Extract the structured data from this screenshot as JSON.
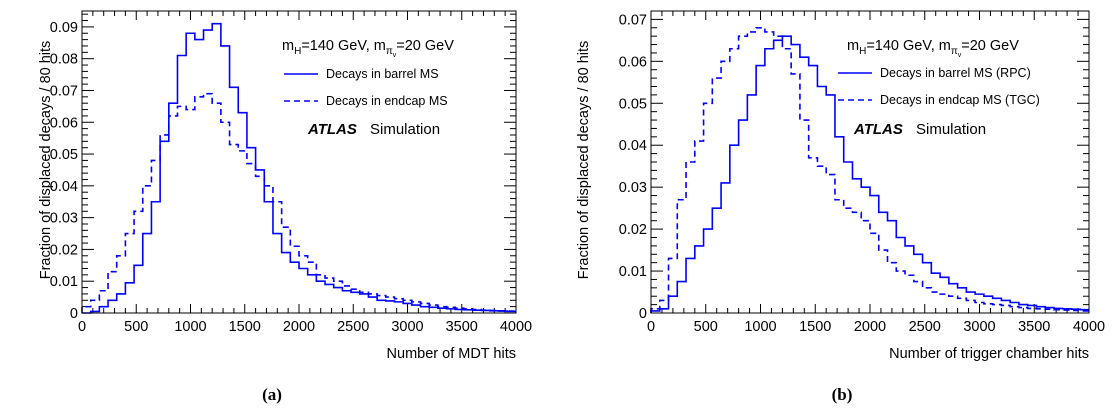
{
  "chart_data": [
    {
      "type": "step-histogram",
      "panel_label": "(a)",
      "xlabel": "Number of MDT hits",
      "ylabel": "Fraction of displaced decays / 80 hits",
      "xlim": [
        0,
        4000
      ],
      "ylim": [
        0,
        0.095
      ],
      "x_ticks": [
        0,
        500,
        1000,
        1500,
        2000,
        2500,
        3000,
        3500,
        4000
      ],
      "x_tick_labels": [
        "0",
        "500",
        "1000",
        "1500",
        "2000",
        "2500",
        "3000",
        "3500",
        "4000"
      ],
      "y_ticks": [
        0,
        0.01,
        0.02,
        0.03,
        0.04,
        0.05,
        0.06,
        0.07,
        0.08,
        0.09
      ],
      "y_tick_labels": [
        "0",
        "0.01",
        "0.02",
        "0.03",
        "0.04",
        "0.05",
        "0.06",
        "0.07",
        "0.08",
        "0.09"
      ],
      "bin_width": 80,
      "annotation": {
        "mH": "m",
        "mH_sub": "H",
        "mH_val": "=140 GeV, m",
        "pi_sub": "π",
        "pi_subsub": "v",
        "pi_val": "=20 GeV"
      },
      "atlas_label": "ATLAS",
      "sim_label": "Simulation",
      "legend_position": "top-right",
      "series": [
        {
          "name": "Decays in barrel MS",
          "style": "solid",
          "color": "#0000ff",
          "values": [
            0.0,
            0.0005,
            0.002,
            0.004,
            0.006,
            0.0095,
            0.015,
            0.025,
            0.035,
            0.054,
            0.066,
            0.081,
            0.088,
            0.086,
            0.089,
            0.091,
            0.084,
            0.071,
            0.063,
            0.052,
            0.045,
            0.035,
            0.025,
            0.019,
            0.016,
            0.014,
            0.012,
            0.01,
            0.009,
            0.008,
            0.007,
            0.0065,
            0.006,
            0.005,
            0.004,
            0.0038,
            0.0035,
            0.003,
            0.0025,
            0.002,
            0.0018,
            0.0015,
            0.0013,
            0.0011,
            0.001,
            0.0009,
            0.0008,
            0.0007,
            0.0006,
            0.0005
          ]
        },
        {
          "name": "Decays in endcap MS",
          "style": "dashed",
          "color": "#0000ff",
          "values": [
            0.002,
            0.004,
            0.007,
            0.013,
            0.018,
            0.025,
            0.032,
            0.04,
            0.048,
            0.056,
            0.062,
            0.065,
            0.064,
            0.068,
            0.069,
            0.066,
            0.06,
            0.053,
            0.051,
            0.047,
            0.043,
            0.04,
            0.035,
            0.027,
            0.021,
            0.018,
            0.016,
            0.012,
            0.011,
            0.01,
            0.0085,
            0.0075,
            0.0065,
            0.006,
            0.0055,
            0.005,
            0.0045,
            0.004,
            0.0035,
            0.003,
            0.0025,
            0.002,
            0.0018,
            0.0015,
            0.0013,
            0.0011,
            0.0009,
            0.0008,
            0.0007,
            0.0006
          ]
        }
      ]
    },
    {
      "type": "step-histogram",
      "panel_label": "(b)",
      "xlabel": "Number of trigger chamber hits",
      "ylabel": "Fraction of displaced decays / 80 hits",
      "xlim": [
        0,
        4000
      ],
      "ylim": [
        0,
        0.072
      ],
      "x_ticks": [
        0,
        500,
        1000,
        1500,
        2000,
        2500,
        3000,
        3500,
        4000
      ],
      "x_tick_labels": [
        "0",
        "500",
        "1000",
        "1500",
        "2000",
        "2500",
        "3000",
        "3500",
        "4000"
      ],
      "y_ticks": [
        0,
        0.01,
        0.02,
        0.03,
        0.04,
        0.05,
        0.06,
        0.07
      ],
      "y_tick_labels": [
        "0",
        "0.01",
        "0.02",
        "0.03",
        "0.04",
        "0.05",
        "0.06",
        "0.07"
      ],
      "bin_width": 80,
      "annotation": {
        "mH": "m",
        "mH_sub": "H",
        "mH_val": "=140 GeV, m",
        "pi_sub": "π",
        "pi_subsub": "v",
        "pi_val": "=20 GeV"
      },
      "atlas_label": "ATLAS",
      "sim_label": "Simulation",
      "legend_position": "top-right",
      "series": [
        {
          "name": "Decays in barrel MS (RPC)",
          "style": "solid",
          "color": "#0000ff",
          "values": [
            0.0005,
            0.001,
            0.004,
            0.0075,
            0.013,
            0.016,
            0.02,
            0.025,
            0.031,
            0.04,
            0.046,
            0.052,
            0.059,
            0.063,
            0.065,
            0.066,
            0.064,
            0.061,
            0.059,
            0.054,
            0.052,
            0.042,
            0.036,
            0.032,
            0.03,
            0.028,
            0.024,
            0.022,
            0.018,
            0.016,
            0.014,
            0.012,
            0.0095,
            0.0085,
            0.007,
            0.006,
            0.005,
            0.0045,
            0.004,
            0.0035,
            0.003,
            0.0025,
            0.002,
            0.0018,
            0.0015,
            0.0013,
            0.0011,
            0.001,
            0.0009,
            0.0008
          ]
        },
        {
          "name": "Decays in endcap MS (TGC)",
          "style": "dashed",
          "color": "#0000ff",
          "values": [
            0.001,
            0.003,
            0.013,
            0.027,
            0.036,
            0.041,
            0.05,
            0.056,
            0.06,
            0.063,
            0.066,
            0.067,
            0.068,
            0.067,
            0.066,
            0.063,
            0.057,
            0.046,
            0.037,
            0.035,
            0.033,
            0.027,
            0.025,
            0.024,
            0.022,
            0.019,
            0.015,
            0.012,
            0.01,
            0.009,
            0.0075,
            0.006,
            0.005,
            0.0045,
            0.004,
            0.0035,
            0.003,
            0.0025,
            0.0022,
            0.002,
            0.0018,
            0.0015,
            0.0013,
            0.0011,
            0.001,
            0.0009,
            0.0008,
            0.0007,
            0.0006,
            0.0005
          ]
        }
      ]
    }
  ]
}
